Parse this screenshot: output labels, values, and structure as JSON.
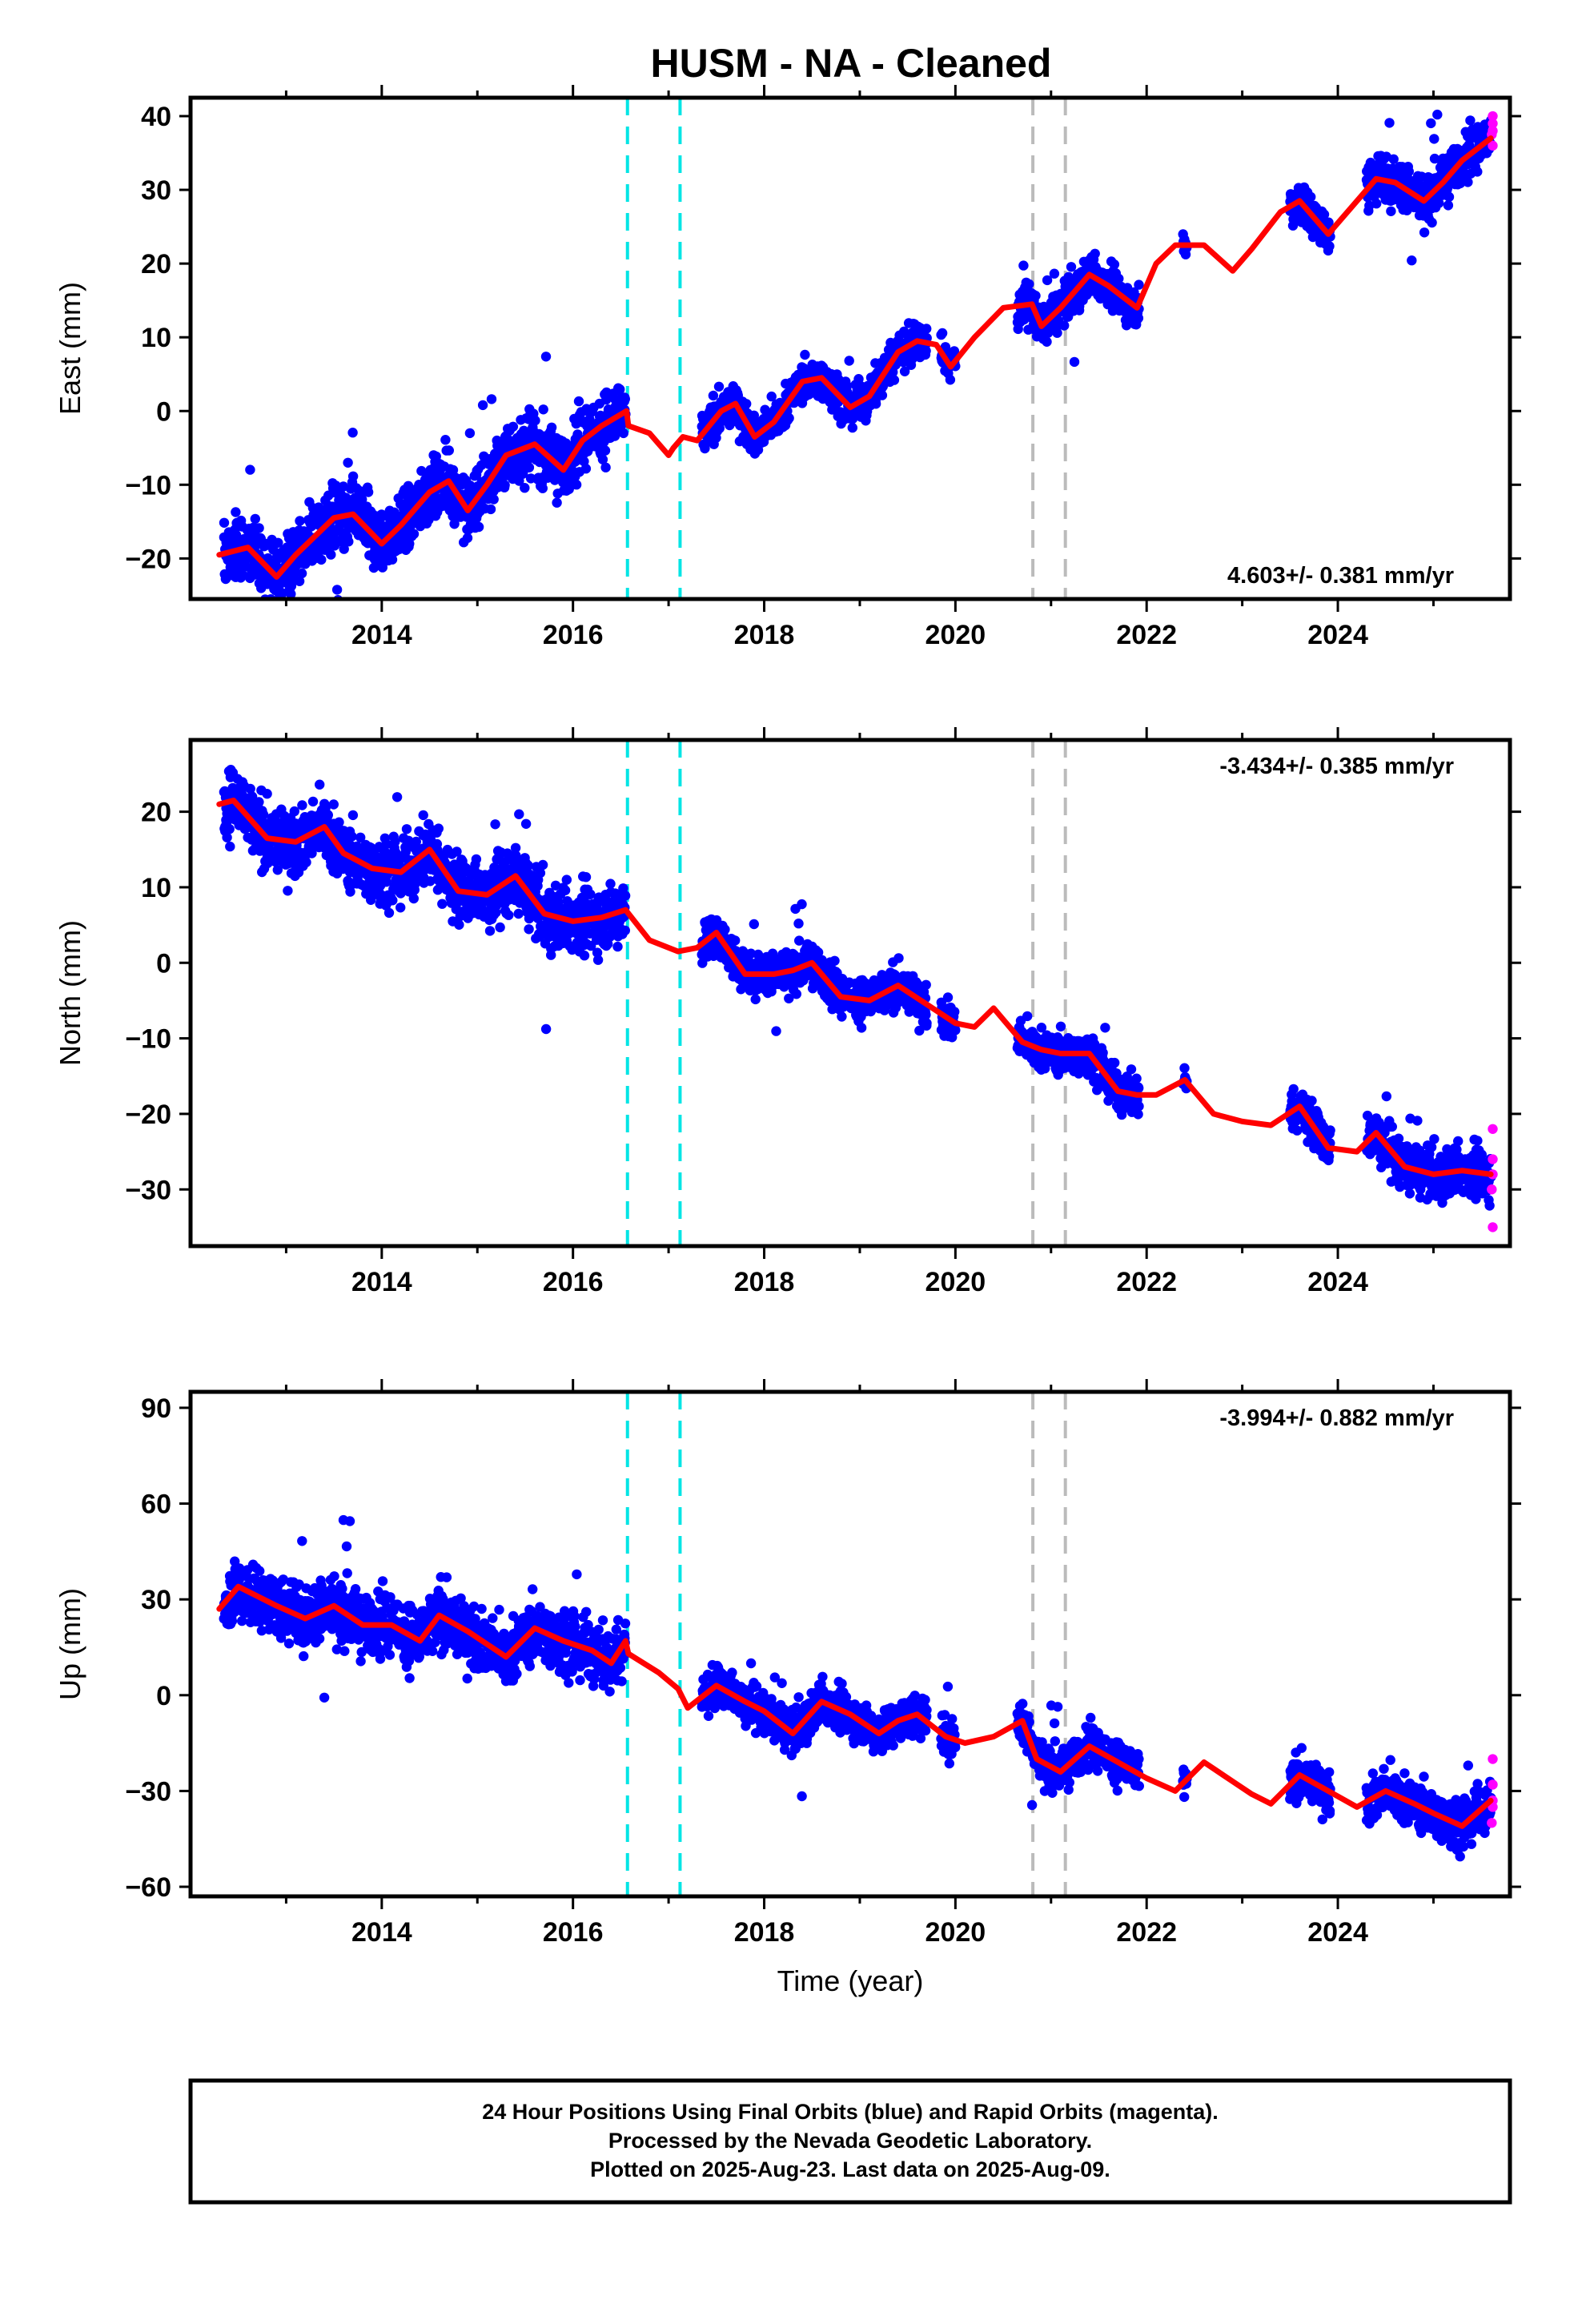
{
  "figure": {
    "title": "HUSM  - NA - Cleaned",
    "caption": [
      "24 Hour Positions Using Final Orbits (blue) and Rapid Orbits (magenta).",
      "Processed by the Nevada Geodetic Laboratory.",
      "Plotted on 2025-Aug-23. Last data on 2025-Aug-09."
    ],
    "colors": {
      "final_orbits": "#0000ff",
      "rapid_orbits": "#ff00ff",
      "model": "#ff0000",
      "event_cyan": "#00e5e5",
      "event_gray": "#bbbbbb"
    }
  },
  "chart_data": [
    {
      "type": "scatter",
      "ylabel": "East (mm)",
      "xlabel": "",
      "xlim": [
        2012.0,
        2025.8
      ],
      "ylim": [
        -25.5,
        42.5
      ],
      "yticks": [
        -20,
        -10,
        0,
        10,
        20,
        30,
        40
      ],
      "xticks": [
        2014,
        2016,
        2018,
        2020,
        2022,
        2024
      ],
      "rate": "4.603+/- 0.381 mm/yr",
      "rate_position": "bottom-right",
      "events_cyan": [
        2016.57,
        2017.12
      ],
      "events_gray": [
        2020.81,
        2021.15
      ],
      "model_line": {
        "x": [
          2012.3,
          2012.6,
          2012.9,
          2013.1,
          2013.5,
          2013.7,
          2014.0,
          2014.2,
          2014.5,
          2014.7,
          2014.9,
          2015.1,
          2015.3,
          2015.6,
          2015.9,
          2016.1,
          2016.3,
          2016.56,
          2016.58,
          2016.8,
          2017.0,
          2017.05,
          2017.15,
          2017.3,
          2017.55,
          2017.7,
          2017.9,
          2018.1,
          2018.4,
          2018.6,
          2018.9,
          2019.1,
          2019.4,
          2019.6,
          2019.8,
          2019.95,
          2020.2,
          2020.5,
          2020.8,
          2020.9,
          2021.1,
          2021.4,
          2021.6,
          2021.9,
          2022.1,
          2022.3,
          2022.6,
          2022.9,
          2023.1,
          2023.4,
          2023.6,
          2023.9,
          2024.1,
          2024.4,
          2024.6,
          2024.9,
          2025.1,
          2025.3,
          2025.6
        ],
        "y": [
          -19.5,
          -18.5,
          -22.5,
          -19.5,
          -14.5,
          -14.0,
          -18.0,
          -15.5,
          -11.0,
          -9.5,
          -13.5,
          -10.0,
          -6.0,
          -4.5,
          -8.0,
          -4.0,
          -2.0,
          0.0,
          -2.0,
          -3.0,
          -6.0,
          -5.0,
          -3.5,
          -4.0,
          0.0,
          1.0,
          -3.5,
          -1.5,
          4.0,
          4.5,
          0.5,
          2.0,
          8.0,
          9.5,
          9.0,
          6.0,
          10.0,
          14.0,
          14.5,
          11.5,
          14.0,
          18.5,
          17.0,
          14.0,
          20.0,
          22.5,
          22.5,
          19.0,
          22.0,
          27.0,
          28.5,
          24.0,
          27.0,
          31.5,
          31.0,
          28.5,
          31.0,
          34.0,
          37.0
        ]
      },
      "scatter_segments": [
        [
          2012.35,
          2016.55,
          4.0
        ],
        [
          2017.35,
          2019.7,
          2.5
        ],
        [
          2019.85,
          2020.0,
          2.5
        ],
        [
          2020.65,
          2021.92,
          2.5
        ],
        [
          2022.38,
          2022.42,
          2.0
        ],
        [
          2023.5,
          2023.92,
          2.5
        ],
        [
          2024.3,
          2025.6,
          3.0
        ]
      ],
      "rapid_points": [
        [
          2025.62,
          36.0
        ],
        [
          2025.62,
          38.0
        ],
        [
          2025.62,
          40.0
        ],
        [
          2025.61,
          37.5
        ],
        [
          2025.62,
          39.0
        ]
      ]
    },
    {
      "type": "scatter",
      "ylabel": "North (mm)",
      "xlabel": "",
      "xlim": [
        2012.0,
        2025.8
      ],
      "ylim": [
        -37.5,
        29.5
      ],
      "yticks": [
        -30,
        -20,
        -10,
        0,
        10,
        20
      ],
      "xticks": [
        2014,
        2016,
        2018,
        2020,
        2022,
        2024
      ],
      "rate": "-3.434+/- 0.385 mm/yr",
      "rate_position": "top-right",
      "events_cyan": [
        2016.57,
        2017.12
      ],
      "events_gray": [
        2020.81,
        2021.15
      ],
      "model_line": {
        "x": [
          2012.3,
          2012.45,
          2012.8,
          2013.1,
          2013.4,
          2013.6,
          2013.9,
          2014.2,
          2014.5,
          2014.8,
          2015.1,
          2015.4,
          2015.7,
          2016.0,
          2016.3,
          2016.55,
          2016.8,
          2017.1,
          2017.3,
          2017.5,
          2017.8,
          2018.1,
          2018.3,
          2018.5,
          2018.8,
          2019.1,
          2019.4,
          2019.7,
          2020.0,
          2020.2,
          2020.4,
          2020.7,
          2020.9,
          2021.1,
          2021.4,
          2021.7,
          2021.9,
          2022.1,
          2022.4,
          2022.7,
          2023.0,
          2023.3,
          2023.6,
          2023.9,
          2024.2,
          2024.4,
          2024.7,
          2025.0,
          2025.3,
          2025.6
        ],
        "y": [
          21.0,
          21.5,
          16.5,
          16.0,
          18.0,
          14.5,
          12.5,
          12.0,
          15.0,
          9.5,
          9.0,
          11.5,
          6.5,
          5.5,
          6.0,
          7.0,
          3.0,
          1.5,
          2.0,
          4.0,
          -1.5,
          -1.5,
          -1.0,
          0.0,
          -4.5,
          -5.0,
          -3.0,
          -5.5,
          -8.0,
          -8.5,
          -6.0,
          -10.5,
          -11.5,
          -12.0,
          -12.0,
          -17.0,
          -17.5,
          -17.5,
          -15.5,
          -20.0,
          -21.0,
          -21.5,
          -19.0,
          -24.5,
          -25.0,
          -22.5,
          -27.0,
          -28.0,
          -27.5,
          -28.0
        ]
      },
      "scatter_segments": [
        [
          2012.35,
          2016.55,
          4.0
        ],
        [
          2017.35,
          2019.7,
          2.5
        ],
        [
          2019.85,
          2020.0,
          2.5
        ],
        [
          2020.65,
          2021.92,
          2.5
        ],
        [
          2022.38,
          2022.42,
          2.0
        ],
        [
          2023.5,
          2023.92,
          2.5
        ],
        [
          2024.3,
          2025.6,
          3.0
        ]
      ],
      "rapid_points": [
        [
          2025.62,
          -22.0
        ],
        [
          2025.62,
          -26.0
        ],
        [
          2025.62,
          -28.0
        ],
        [
          2025.61,
          -30.0
        ],
        [
          2025.62,
          -35.0
        ]
      ]
    },
    {
      "type": "scatter",
      "ylabel": "Up (mm)",
      "xlabel": "Time (year)",
      "xlim": [
        2012.0,
        2025.8
      ],
      "ylim": [
        -63.0,
        95.0
      ],
      "yticks": [
        -60,
        -30,
        0,
        30,
        60,
        90
      ],
      "xticks": [
        2014,
        2016,
        2018,
        2020,
        2022,
        2024
      ],
      "rate": "-3.994+/- 0.882 mm/yr",
      "rate_position": "top-right",
      "events_cyan": [
        2016.57,
        2017.12
      ],
      "events_gray": [
        2020.81,
        2021.15
      ],
      "model_line": {
        "x": [
          2012.3,
          2012.5,
          2012.9,
          2013.2,
          2013.5,
          2013.8,
          2014.1,
          2014.4,
          2014.6,
          2014.9,
          2015.1,
          2015.3,
          2015.6,
          2015.9,
          2016.2,
          2016.4,
          2016.55,
          2016.58,
          2016.9,
          2017.1,
          2017.2,
          2017.5,
          2017.8,
          2018.0,
          2018.3,
          2018.6,
          2018.9,
          2019.2,
          2019.4,
          2019.6,
          2019.9,
          2020.1,
          2020.4,
          2020.7,
          2020.85,
          2021.1,
          2021.4,
          2021.7,
          2022.0,
          2022.3,
          2022.6,
          2022.9,
          2023.1,
          2023.3,
          2023.6,
          2023.9,
          2024.2,
          2024.5,
          2024.8,
          2025.0,
          2025.3,
          2025.6
        ],
        "y": [
          27.0,
          34.0,
          28.0,
          24.0,
          28.0,
          22.0,
          22.0,
          17.0,
          25.0,
          20.0,
          16.0,
          12.0,
          21.0,
          17.0,
          14.0,
          10.0,
          17.0,
          13.0,
          7.0,
          2.0,
          -4.0,
          3.0,
          -2.0,
          -5.0,
          -12.0,
          -2.0,
          -6.0,
          -12.0,
          -8.0,
          -6.0,
          -13.0,
          -15.0,
          -13.0,
          -8.0,
          -20.0,
          -24.0,
          -16.0,
          -21.0,
          -26.0,
          -30.0,
          -21.0,
          -27.0,
          -31.0,
          -34.0,
          -25.0,
          -30.0,
          -35.0,
          -30.0,
          -34.0,
          -37.0,
          -41.0,
          -33.0
        ]
      },
      "scatter_segments": [
        [
          2012.35,
          2016.55,
          9.0
        ],
        [
          2017.35,
          2019.7,
          6.0
        ],
        [
          2019.85,
          2020.0,
          6.0
        ],
        [
          2020.65,
          2021.92,
          6.0
        ],
        [
          2022.38,
          2022.42,
          5.0
        ],
        [
          2023.5,
          2023.92,
          6.0
        ],
        [
          2024.3,
          2025.6,
          7.0
        ]
      ],
      "rapid_points": [
        [
          2025.62,
          -20.0
        ],
        [
          2025.62,
          -28.0
        ],
        [
          2025.62,
          -35.0
        ],
        [
          2025.61,
          -40.0
        ],
        [
          2025.62,
          -33.0
        ]
      ]
    }
  ]
}
